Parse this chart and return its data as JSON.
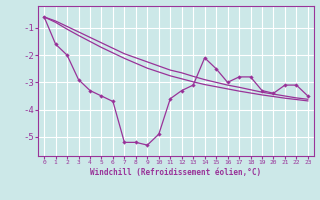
{
  "x_data": [
    0,
    1,
    2,
    3,
    4,
    5,
    6,
    7,
    8,
    9,
    10,
    11,
    12,
    13,
    14,
    15,
    16,
    17,
    18,
    19,
    20,
    21,
    22,
    23
  ],
  "y_curve": [
    -0.6,
    -1.6,
    -2.0,
    -2.9,
    -3.3,
    -3.5,
    -3.7,
    -5.2,
    -5.2,
    -5.3,
    -4.9,
    -3.6,
    -3.3,
    -3.1,
    -2.1,
    -2.5,
    -3.0,
    -2.8,
    -2.8,
    -3.3,
    -3.4,
    -3.1,
    -3.1,
    -3.5
  ],
  "y_linear1": [
    -0.6,
    -0.75,
    -0.95,
    -1.15,
    -1.35,
    -1.55,
    -1.75,
    -1.95,
    -2.1,
    -2.25,
    -2.4,
    -2.55,
    -2.65,
    -2.78,
    -2.9,
    -3.0,
    -3.1,
    -3.18,
    -3.27,
    -3.36,
    -3.43,
    -3.5,
    -3.57,
    -3.62
  ],
  "y_linear2": [
    -0.6,
    -0.8,
    -1.05,
    -1.28,
    -1.5,
    -1.72,
    -1.92,
    -2.12,
    -2.3,
    -2.48,
    -2.62,
    -2.76,
    -2.87,
    -2.98,
    -3.08,
    -3.16,
    -3.24,
    -3.32,
    -3.39,
    -3.46,
    -3.52,
    -3.58,
    -3.63,
    -3.68
  ],
  "line_color": "#993399",
  "bg_color": "#cce8e8",
  "grid_color": "#ffffff",
  "xlabel": "Windchill (Refroidissement éolien,°C)",
  "xlim": [
    -0.5,
    23.5
  ],
  "ylim": [
    -5.7,
    -0.2
  ],
  "yticks": [
    -5,
    -4,
    -3,
    -2,
    -1
  ],
  "xticks": [
    0,
    1,
    2,
    3,
    4,
    5,
    6,
    7,
    8,
    9,
    10,
    11,
    12,
    13,
    14,
    15,
    16,
    17,
    18,
    19,
    20,
    21,
    22,
    23
  ]
}
